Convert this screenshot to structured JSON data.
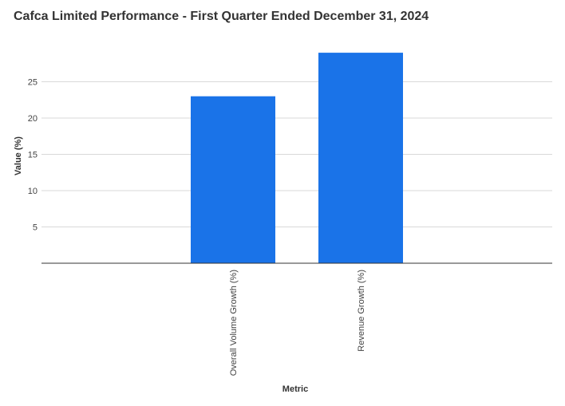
{
  "chart_data": {
    "type": "bar",
    "title": "Cafca Limited Performance - First Quarter Ended December 31, 2024",
    "xlabel": "Metric",
    "ylabel": "Value (%)",
    "categories": [
      "Overall Volume Growth (%)",
      "Revenue Growth (%)"
    ],
    "values": [
      23,
      29
    ],
    "ylim": [
      0,
      30
    ],
    "yticks": [
      5,
      10,
      15,
      20,
      25
    ],
    "grid": true,
    "legend": "none",
    "bar_color": "#1a73e8"
  }
}
